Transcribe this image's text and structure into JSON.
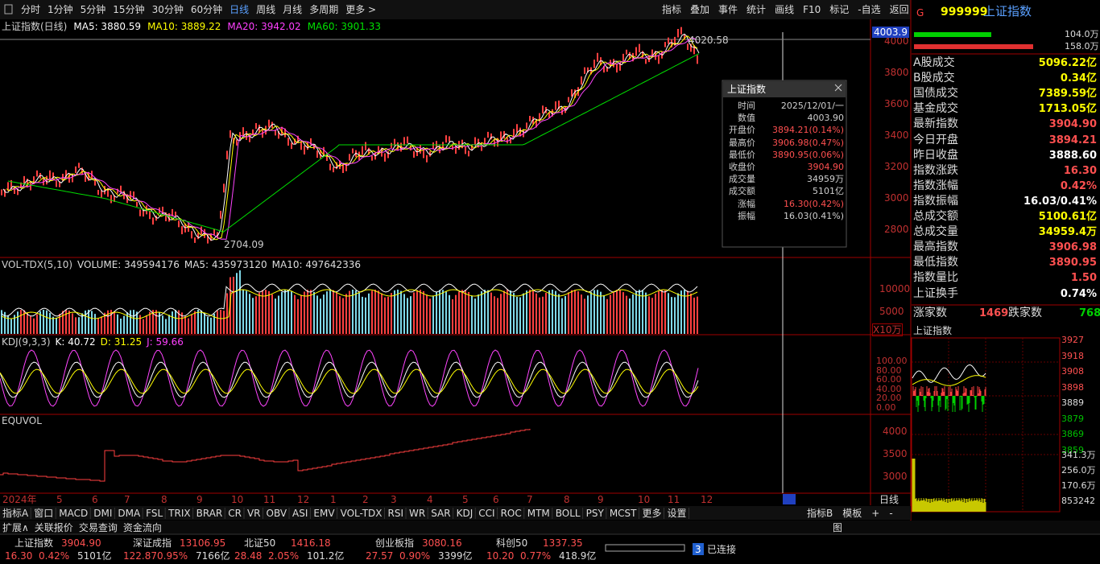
{
  "toolbar": {
    "periods": [
      "分时",
      "1分钟",
      "5分钟",
      "15分钟",
      "30分钟",
      "60分钟",
      "日线",
      "周线",
      "月线",
      "多周期",
      "更多 >"
    ],
    "actions": [
      "指标",
      "叠加",
      "事件",
      "统计",
      "画线",
      "F10",
      "标记",
      "-自选",
      "返回"
    ]
  },
  "main": {
    "legend": [
      {
        "text": "上证指数(日线)",
        "color": "#cfcfcf"
      },
      {
        "text": "MA5: 3880.59",
        "color": "#ffffff"
      },
      {
        "text": "MA10: 3889.22",
        "color": "#ffff00"
      },
      {
        "text": "MA20: 3942.02",
        "color": "#ff40ff"
      },
      {
        "text": "MA60: 3901.33",
        "color": "#00e000"
      }
    ],
    "yticks": [
      "4000",
      "3800",
      "3600",
      "3400",
      "3200",
      "3000",
      "2800"
    ],
    "current": "4003.9",
    "high": "4020.58",
    "low": "2704.09"
  },
  "popup": {
    "title": "上证指数",
    "rows": [
      {
        "label": "时间",
        "value": "2025/12/01/一",
        "color": "#cfcfcf"
      },
      {
        "label": "数值",
        "value": "4003.90",
        "color": "#cfcfcf"
      },
      {
        "label": "开盘价",
        "value": "3894.21(0.14%)",
        "color": "#ff5050"
      },
      {
        "label": "最高价",
        "value": "3906.98(0.47%)",
        "color": "#ff5050"
      },
      {
        "label": "最低价",
        "value": "3890.95(0.06%)",
        "color": "#ff5050"
      },
      {
        "label": "收盘价",
        "value": "3904.90",
        "color": "#ff5050"
      },
      {
        "label": "成交量",
        "value": "34959万",
        "color": "#cfcfcf"
      },
      {
        "label": "成交额",
        "value": "5101亿",
        "color": "#cfcfcf"
      },
      {
        "label": "涨幅",
        "value": "16.30(0.42%)",
        "color": "#ff5050"
      },
      {
        "label": "振幅",
        "value": "16.03(0.41%)",
        "color": "#cfcfcf"
      }
    ]
  },
  "volume": {
    "legend": [
      "VOL-TDX(5,10)",
      "VOLUME: 349594176",
      "MA5: 435973120",
      "MA10: 497642336"
    ],
    "yticks": [
      "10000",
      "5000"
    ],
    "unit": "X10万"
  },
  "kdj": {
    "legend": [
      {
        "text": "KDJ(9,3,3)",
        "color": "#cfcfcf"
      },
      {
        "text": "K: 40.72",
        "color": "#ffffff"
      },
      {
        "text": "D: 31.25",
        "color": "#ffff00"
      },
      {
        "text": "J: 59.66",
        "color": "#ff40ff"
      }
    ],
    "yticks": [
      "100.00",
      "80.00",
      "60.00",
      "40.00",
      "20.00",
      "0.00"
    ]
  },
  "equvol": {
    "legend": "EQUVOL",
    "yticks": [
      "4000",
      "3500",
      "3000"
    ]
  },
  "xaxis": {
    "labels": [
      "2024年",
      "5",
      "6",
      "7",
      "8",
      "9",
      "10",
      "11",
      "12",
      "1",
      "2",
      "3",
      "4",
      "5",
      "6",
      "7",
      "8",
      "9",
      "10",
      "11",
      "12"
    ],
    "period": "日线"
  },
  "tabs": {
    "left": [
      "指标A",
      "窗口",
      "MACD",
      "DMI",
      "DMA",
      "FSL",
      "TRIX",
      "BRAR",
      "CR",
      "VR",
      "OBV",
      "ASI",
      "EMV",
      "VOL-TDX",
      "RSI",
      "WR",
      "SAR",
      "KDJ",
      "CCI",
      "ROC",
      "MTM",
      "BOLL",
      "PSY",
      "MCST",
      "更多",
      "设置"
    ],
    "right": [
      "指标B",
      "模板",
      "+",
      "-"
    ]
  },
  "ext": {
    "left": [
      "扩展∧",
      "关联报价",
      "交易查询",
      "资金流向"
    ],
    "right": "图"
  },
  "tickers": [
    {
      "name": "上证指数",
      "price": "3904.90",
      "change": "16.30",
      "pct": "0.42%",
      "amount": "5101亿"
    },
    {
      "name": "深证成指",
      "price": "13106.95",
      "change": "122.87",
      "pct": "0.95%",
      "amount": "7166亿"
    },
    {
      "name": "北证50",
      "price": "1416.18",
      "change": "28.48",
      "pct": "2.05%",
      "amount": "101.2亿"
    },
    {
      "name": "创业板指",
      "price": "3080.16",
      "change": "27.57",
      "pct": "0.90%",
      "amount": "3399亿"
    },
    {
      "name": "科创50",
      "price": "1337.35",
      "change": "10.20",
      "pct": "0.77%",
      "amount": "418.9亿"
    }
  ],
  "status": {
    "badge": "3",
    "text": "已连接"
  },
  "quote": {
    "logo": "G",
    "code": "999999",
    "name": "上证指数",
    "bars": [
      "104.0万",
      "158.0万"
    ],
    "stats": [
      {
        "label": "A股成交",
        "value": "5096.22亿",
        "color": "#ffff00"
      },
      {
        "label": "B股成交",
        "value": "0.34亿",
        "color": "#ffff00"
      },
      {
        "label": "国债成交",
        "value": "7389.59亿",
        "color": "#ffff00"
      },
      {
        "label": "基金成交",
        "value": "1713.05亿",
        "color": "#ffff00"
      },
      {
        "label": "最新指数",
        "value": "3904.90",
        "color": "#ff5050"
      },
      {
        "label": "今日开盘",
        "value": "3894.21",
        "color": "#ff5050"
      },
      {
        "label": "昨日收盘",
        "value": "3888.60",
        "color": "#ffffff"
      },
      {
        "label": "指数涨跌",
        "value": "16.30",
        "color": "#ff5050"
      },
      {
        "label": "指数涨幅",
        "value": "0.42%",
        "color": "#ff5050"
      },
      {
        "label": "指数振幅",
        "value": "16.03/0.41%",
        "color": "#ffffff"
      },
      {
        "label": "总成交额",
        "value": "5100.61亿",
        "color": "#ffff00"
      },
      {
        "label": "总成交量",
        "value": "34959.4万",
        "color": "#ffff00"
      },
      {
        "label": "最高指数",
        "value": "3906.98",
        "color": "#ff5050"
      },
      {
        "label": "最低指数",
        "value": "3890.95",
        "color": "#ff5050"
      },
      {
        "label": "指数量比",
        "value": "1.50",
        "color": "#ff5050"
      },
      {
        "label": "上证换手",
        "value": "0.74%",
        "color": "#ffffff"
      }
    ],
    "rise_label": "涨家数",
    "rise": "1469",
    "fall_label": "跌家数",
    "fall": "768",
    "mini_title": "上证指数",
    "mini_yticks": [
      "3927",
      "3918",
      "3908",
      "3898",
      "3889",
      "3879",
      "3869",
      "3859"
    ],
    "mini_vticks": [
      "341.3万",
      "256.0万",
      "170.6万",
      "853242"
    ]
  }
}
